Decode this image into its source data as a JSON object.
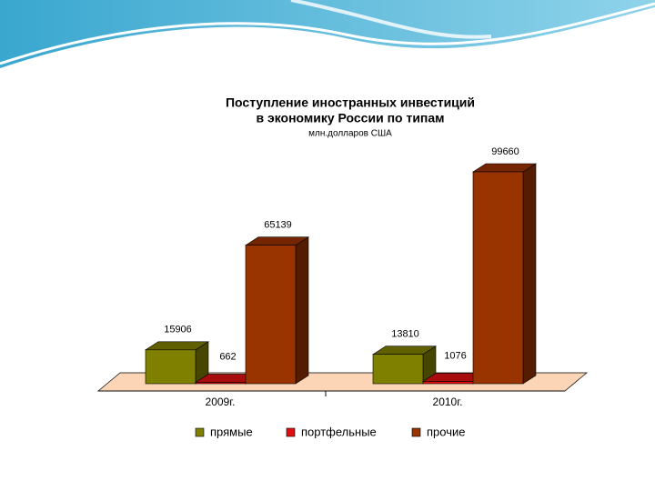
{
  "chart_data": {
    "type": "bar",
    "title_lines": [
      "Поступление иностранных инвестиций",
      "в экономику России по типам"
    ],
    "subtitle": "млн.долларов США",
    "categories": [
      "2009г.",
      "2010г."
    ],
    "series": [
      {
        "name": "прямые",
        "color": "#808000",
        "values": [
          15906,
          13810
        ]
      },
      {
        "name": "портфельные",
        "color": "#e01010",
        "values": [
          662,
          1076
        ]
      },
      {
        "name": "прочие",
        "color": "#993300",
        "values": [
          65139,
          99660
        ]
      }
    ]
  }
}
